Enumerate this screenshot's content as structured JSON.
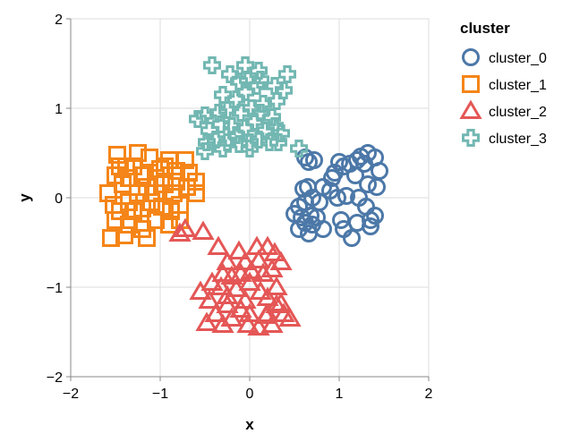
{
  "chart_data": {
    "type": "scatter",
    "xlabel": "x",
    "ylabel": "y",
    "xlim": [
      -2,
      2
    ],
    "ylim": [
      -2,
      2
    ],
    "x_ticks": [
      "−2",
      "−1",
      "0",
      "1",
      "2"
    ],
    "y_ticks": [
      "2",
      "1",
      "0",
      "−1",
      "−2"
    ],
    "grid": true,
    "legend_title": "cluster",
    "legend_position": "top-right",
    "series": [
      {
        "name": "cluster_0",
        "marker": "circle",
        "color": "#4c78a8",
        "points": [
          [
            0.62,
            0.45
          ],
          [
            0.66,
            0.4
          ],
          [
            0.72,
            0.42
          ],
          [
            0.6,
            0.1
          ],
          [
            0.65,
            0.12
          ],
          [
            0.82,
            0.12
          ],
          [
            0.9,
            0.08
          ],
          [
            0.95,
            0.28
          ],
          [
            1.05,
            0.35
          ],
          [
            1.12,
            0.38
          ],
          [
            1.2,
            0.42
          ],
          [
            1.24,
            0.46
          ],
          [
            1.32,
            0.5
          ],
          [
            1.4,
            0.45
          ],
          [
            1.45,
            0.3
          ],
          [
            1.28,
            0.38
          ],
          [
            1.18,
            0.25
          ],
          [
            1.32,
            0.15
          ],
          [
            1.42,
            0.12
          ],
          [
            1.22,
            0.0
          ],
          [
            1.08,
            0.02
          ],
          [
            0.98,
            0.0
          ],
          [
            0.78,
            -0.05
          ],
          [
            0.62,
            -0.05
          ],
          [
            0.55,
            -0.1
          ],
          [
            0.5,
            -0.18
          ],
          [
            0.58,
            -0.22
          ],
          [
            0.68,
            -0.2
          ],
          [
            0.7,
            -0.3
          ],
          [
            0.75,
            -0.22
          ],
          [
            0.82,
            -0.35
          ],
          [
            0.62,
            -0.28
          ],
          [
            0.66,
            -0.4
          ],
          [
            0.55,
            -0.35
          ],
          [
            1.02,
            -0.25
          ],
          [
            1.05,
            -0.35
          ],
          [
            1.2,
            -0.28
          ],
          [
            1.35,
            -0.25
          ],
          [
            1.4,
            -0.2
          ],
          [
            1.35,
            -0.32
          ],
          [
            1.14,
            -0.45
          ],
          [
            1.3,
            -0.1
          ],
          [
            0.92,
            0.22
          ],
          [
            1.0,
            0.4
          ],
          [
            0.7,
            0.0
          ]
        ]
      },
      {
        "name": "cluster_1",
        "marker": "square",
        "color": "#f58518",
        "points": [
          [
            -1.48,
            0.48
          ],
          [
            -1.38,
            0.35
          ],
          [
            -1.25,
            0.5
          ],
          [
            -1.12,
            0.45
          ],
          [
            -1.0,
            0.32
          ],
          [
            -0.9,
            0.42
          ],
          [
            -0.72,
            0.42
          ],
          [
            -0.82,
            0.3
          ],
          [
            -0.68,
            0.28
          ],
          [
            -1.5,
            0.25
          ],
          [
            -1.42,
            0.15
          ],
          [
            -1.35,
            0.22
          ],
          [
            -1.25,
            0.05
          ],
          [
            -1.15,
            0.12
          ],
          [
            -1.05,
            0.22
          ],
          [
            -0.95,
            0.15
          ],
          [
            -0.85,
            0.05
          ],
          [
            -0.6,
            0.18
          ],
          [
            -1.58,
            0.05
          ],
          [
            -1.52,
            -0.08
          ],
          [
            -1.45,
            -0.15
          ],
          [
            -1.35,
            -0.05
          ],
          [
            -1.2,
            -0.12
          ],
          [
            -1.1,
            -0.05
          ],
          [
            -0.98,
            -0.1
          ],
          [
            -0.88,
            -0.15
          ],
          [
            -0.78,
            -0.08
          ],
          [
            -0.6,
            0.05
          ],
          [
            -1.5,
            -0.25
          ],
          [
            -1.35,
            -0.3
          ],
          [
            -1.2,
            -0.35
          ],
          [
            -1.05,
            -0.25
          ],
          [
            -0.9,
            -0.3
          ],
          [
            -0.78,
            -0.25
          ],
          [
            -1.55,
            -0.45
          ],
          [
            -1.4,
            -0.42
          ],
          [
            -1.15,
            -0.45
          ],
          [
            -1.3,
            0.35
          ],
          [
            -0.95,
            0.35
          ],
          [
            -1.45,
            0.35
          ],
          [
            -0.7,
            0.12
          ],
          [
            -1.3,
            -0.15
          ],
          [
            -1.05,
            0.05
          ],
          [
            -1.2,
            0.25
          ],
          [
            -0.82,
            0.18
          ]
        ]
      },
      {
        "name": "cluster_2",
        "marker": "triangle",
        "color": "#e45756",
        "points": [
          [
            -0.78,
            -0.4
          ],
          [
            -0.72,
            -0.35
          ],
          [
            -0.52,
            -0.38
          ],
          [
            -0.35,
            -0.55
          ],
          [
            -0.25,
            -0.72
          ],
          [
            -0.12,
            -0.6
          ],
          [
            -0.05,
            -0.72
          ],
          [
            0.08,
            -0.55
          ],
          [
            0.2,
            -0.55
          ],
          [
            0.28,
            -0.62
          ],
          [
            0.35,
            -0.72
          ],
          [
            -0.3,
            -0.85
          ],
          [
            -0.2,
            -0.88
          ],
          [
            -0.1,
            -0.85
          ],
          [
            0.02,
            -0.82
          ],
          [
            0.15,
            -0.85
          ],
          [
            0.25,
            -0.8
          ],
          [
            -0.42,
            -0.95
          ],
          [
            -0.32,
            -1.0
          ],
          [
            -0.15,
            -1.02
          ],
          [
            0.0,
            -0.95
          ],
          [
            0.12,
            -1.05
          ],
          [
            0.3,
            -1.0
          ],
          [
            -0.45,
            -1.15
          ],
          [
            -0.25,
            -1.1
          ],
          [
            -0.05,
            -1.15
          ],
          [
            0.2,
            -1.12
          ],
          [
            0.35,
            -1.18
          ],
          [
            -0.38,
            -1.3
          ],
          [
            -0.2,
            -1.35
          ],
          [
            0.0,
            -1.3
          ],
          [
            0.18,
            -1.32
          ],
          [
            0.38,
            -1.3
          ],
          [
            -0.48,
            -1.4
          ],
          [
            -0.3,
            -1.42
          ],
          [
            -0.02,
            -1.42
          ],
          [
            0.1,
            -1.45
          ],
          [
            0.25,
            -1.42
          ],
          [
            0.45,
            -1.35
          ],
          [
            -0.55,
            -1.05
          ],
          [
            0.2,
            -1.3
          ],
          [
            -0.1,
            -1.25
          ],
          [
            0.1,
            -0.7
          ],
          [
            -0.25,
            -1.2
          ],
          [
            0.3,
            -1.2
          ]
        ]
      },
      {
        "name": "cluster_3",
        "marker": "cross",
        "color": "#72b7b2",
        "points": [
          [
            -0.42,
            1.48
          ],
          [
            -0.05,
            1.48
          ],
          [
            0.1,
            1.42
          ],
          [
            0.42,
            1.38
          ],
          [
            -0.22,
            1.38
          ],
          [
            -0.12,
            1.3
          ],
          [
            -0.02,
            1.32
          ],
          [
            0.08,
            1.25
          ],
          [
            0.28,
            1.25
          ],
          [
            0.38,
            1.2
          ],
          [
            -0.3,
            1.15
          ],
          [
            -0.15,
            1.1
          ],
          [
            -0.05,
            1.18
          ],
          [
            0.15,
            1.05
          ],
          [
            0.3,
            1.08
          ],
          [
            -0.5,
            0.92
          ],
          [
            -0.35,
            0.95
          ],
          [
            -0.25,
            0.98
          ],
          [
            -0.1,
            0.95
          ],
          [
            0.02,
            1.0
          ],
          [
            0.12,
            0.95
          ],
          [
            0.25,
            0.9
          ],
          [
            -0.45,
            0.75
          ],
          [
            -0.32,
            0.82
          ],
          [
            -0.2,
            0.8
          ],
          [
            -0.05,
            0.78
          ],
          [
            0.05,
            0.85
          ],
          [
            0.18,
            0.75
          ],
          [
            -0.48,
            0.62
          ],
          [
            -0.38,
            0.65
          ],
          [
            -0.25,
            0.62
          ],
          [
            -0.12,
            0.6
          ],
          [
            0.0,
            0.62
          ],
          [
            0.1,
            0.65
          ],
          [
            0.22,
            0.62
          ],
          [
            0.32,
            0.62
          ],
          [
            -0.5,
            0.52
          ],
          [
            -0.3,
            0.55
          ],
          [
            0.0,
            0.55
          ],
          [
            0.55,
            0.55
          ],
          [
            -0.58,
            0.88
          ],
          [
            0.28,
            0.8
          ],
          [
            -0.15,
            0.7
          ],
          [
            0.12,
            1.32
          ],
          [
            0.35,
            0.72
          ]
        ]
      }
    ]
  }
}
